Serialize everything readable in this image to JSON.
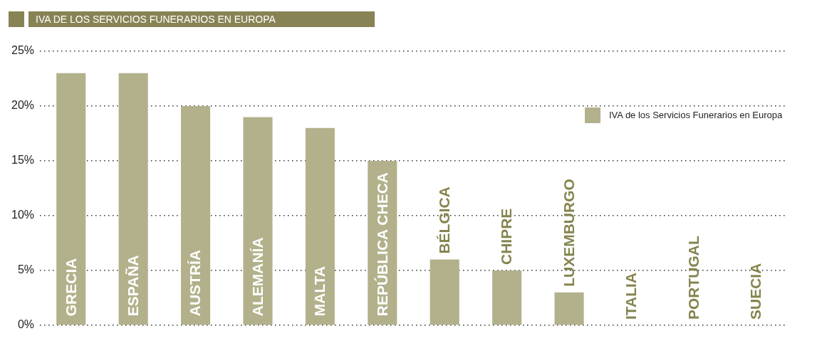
{
  "chart_data": {
    "type": "bar",
    "title": "IVA DE LOS SERVICIOS FUNERARIOS EN EUROPA",
    "categories": [
      "GRECIA",
      "ESPAÑA",
      "AUSTRÍA",
      "ALEMANÍA",
      "MALTA",
      "REPÚBLICA CHECA",
      "BÉLGICA",
      "CHIPRE",
      "LUXEMBURGO",
      "ITALIA",
      "PORTUGAL",
      "SUECIA"
    ],
    "series": [
      {
        "name": "IVA de los Servicios Funerarios en Europa",
        "color": "#b3b18b",
        "values": [
          23,
          23,
          20,
          19,
          18,
          15,
          6,
          5,
          3,
          0,
          0,
          0
        ]
      }
    ],
    "ylim": [
      0,
      25
    ],
    "yticks": [
      {
        "value": 0,
        "label": "0%"
      },
      {
        "value": 5,
        "label": "5%"
      },
      {
        "value": 10,
        "label": "10%"
      },
      {
        "value": 15,
        "label": "15%"
      },
      {
        "value": 20,
        "label": "20%"
      },
      {
        "value": 25,
        "label": "25%"
      }
    ],
    "grid": "y",
    "legend": "top right"
  }
}
